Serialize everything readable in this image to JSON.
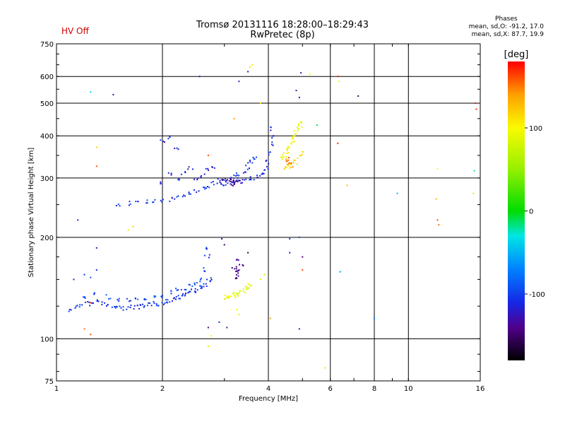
{
  "header": {
    "title": "Tromsø 20131116 18:28:00–18:29:43",
    "subtitle": "RwPretec (8p)",
    "status": "HV Off",
    "status_color": "#d00000"
  },
  "stats": {
    "heading": "Phases",
    "line1": "mean, sd,O: -91.2, 17.0",
    "line2": "mean, sd,X:  87.7, 19.9"
  },
  "colorbar": {
    "label": "[deg]",
    "ticks": [
      {
        "value": 100,
        "label": "100"
      },
      {
        "value": 0,
        "label": "0"
      },
      {
        "value": -100,
        "label": "-100"
      }
    ],
    "range": [
      -180,
      180
    ]
  },
  "chart_data": {
    "type": "scatter",
    "xlabel": "Frequency [MHz]",
    "ylabel": "Stationary phase Virtual Height [km]",
    "xscale": "log",
    "yscale": "log",
    "xlim": [
      1,
      16
    ],
    "ylim": [
      75,
      750
    ],
    "xticks": [
      {
        "v": 1,
        "label": "1"
      },
      {
        "v": 2,
        "label": "2"
      },
      {
        "v": 4,
        "label": "4"
      },
      {
        "v": 6,
        "label": "6"
      },
      {
        "v": 8,
        "label": "8"
      },
      {
        "v": 10,
        "label": "10"
      },
      {
        "v": 16,
        "label": "16"
      }
    ],
    "yticks": [
      {
        "v": 75,
        "label": "75"
      },
      {
        "v": 100,
        "label": "100"
      },
      {
        "v": 200,
        "label": "200"
      },
      {
        "v": 300,
        "label": "300"
      },
      {
        "v": 400,
        "label": "400"
      },
      {
        "v": 500,
        "label": "500"
      },
      {
        "v": 600,
        "label": "600"
      },
      {
        "v": 750,
        "label": "750"
      }
    ],
    "grid_x": [
      2,
      4,
      6,
      8,
      10
    ],
    "grid_y": [
      100,
      200,
      300,
      400,
      500,
      600
    ],
    "grid": true,
    "series": [
      {
        "mode": "E-layer O trace",
        "phase": -105,
        "points": [
          [
            1.1,
            122
          ],
          [
            1.14,
            124
          ],
          [
            1.18,
            126
          ],
          [
            1.22,
            128
          ],
          [
            1.26,
            127
          ],
          [
            1.3,
            129
          ],
          [
            1.35,
            127
          ],
          [
            1.4,
            126
          ],
          [
            1.45,
            125
          ],
          [
            1.5,
            124
          ],
          [
            1.55,
            123
          ],
          [
            1.6,
            123
          ],
          [
            1.65,
            124
          ],
          [
            1.7,
            124
          ],
          [
            1.75,
            125
          ],
          [
            1.8,
            125
          ],
          [
            1.85,
            126
          ],
          [
            1.9,
            127
          ],
          [
            1.95,
            127
          ],
          [
            2.0,
            128
          ],
          [
            2.05,
            129
          ],
          [
            2.1,
            130
          ],
          [
            2.15,
            131
          ],
          [
            2.2,
            132
          ],
          [
            2.25,
            133
          ],
          [
            2.3,
            134
          ],
          [
            2.35,
            136
          ],
          [
            2.4,
            137
          ],
          [
            2.45,
            139
          ],
          [
            2.5,
            140
          ],
          [
            2.55,
            142
          ],
          [
            2.6,
            143
          ],
          [
            2.65,
            145
          ],
          [
            2.7,
            148
          ],
          [
            2.75,
            150
          ]
        ]
      },
      {
        "mode": "E-layer O trace (upper edge)",
        "phase": -95,
        "points": [
          [
            1.2,
            132
          ],
          [
            1.3,
            136
          ],
          [
            1.4,
            133
          ],
          [
            1.5,
            131
          ],
          [
            1.6,
            130
          ],
          [
            1.7,
            131
          ],
          [
            1.8,
            130
          ],
          [
            1.9,
            133
          ],
          [
            2.0,
            134
          ],
          [
            2.1,
            137
          ],
          [
            2.2,
            139
          ],
          [
            2.3,
            141
          ],
          [
            2.4,
            144
          ],
          [
            2.5,
            146
          ],
          [
            2.6,
            150
          ],
          [
            2.65,
            160
          ],
          [
            2.68,
            175
          ],
          [
            2.7,
            185
          ]
        ]
      },
      {
        "mode": "E-layer X trace",
        "phase": 90,
        "points": [
          [
            3.0,
            132
          ],
          [
            3.05,
            134
          ],
          [
            3.1,
            133
          ],
          [
            3.15,
            135
          ],
          [
            3.2,
            134
          ],
          [
            3.25,
            136
          ],
          [
            3.3,
            135
          ],
          [
            3.35,
            137
          ],
          [
            3.4,
            139
          ],
          [
            3.45,
            141
          ],
          [
            3.5,
            143
          ],
          [
            3.55,
            146
          ]
        ]
      },
      {
        "mode": "E-layer O cusp",
        "phase": -140,
        "points": [
          [
            3.2,
            150
          ],
          [
            3.25,
            155
          ],
          [
            3.3,
            160
          ],
          [
            3.35,
            165
          ],
          [
            3.3,
            170
          ],
          [
            3.25,
            158
          ],
          [
            3.2,
            162
          ]
        ]
      },
      {
        "mode": "F-layer O trace",
        "phase": -105,
        "points": [
          [
            1.5,
            250
          ],
          [
            1.6,
            252
          ],
          [
            1.7,
            254
          ],
          [
            1.8,
            255
          ],
          [
            1.9,
            256
          ],
          [
            2.0,
            257
          ],
          [
            2.1,
            259
          ],
          [
            2.2,
            262
          ],
          [
            2.3,
            265
          ],
          [
            2.4,
            270
          ],
          [
            2.5,
            274
          ],
          [
            2.6,
            278
          ],
          [
            2.7,
            283
          ],
          [
            2.8,
            290
          ],
          [
            2.9,
            295
          ],
          [
            3.0,
            298
          ],
          [
            3.1,
            300
          ],
          [
            3.2,
            303
          ],
          [
            3.3,
            308
          ],
          [
            3.4,
            315
          ],
          [
            3.5,
            322
          ],
          [
            3.55,
            330
          ],
          [
            3.6,
            340
          ],
          [
            3.65,
            346
          ]
        ]
      },
      {
        "mode": "F-layer O upper branch",
        "phase": -110,
        "points": [
          [
            2.9,
            285
          ],
          [
            3.0,
            288
          ],
          [
            3.1,
            290
          ],
          [
            3.2,
            292
          ],
          [
            3.3,
            292
          ],
          [
            3.4,
            294
          ],
          [
            3.5,
            297
          ],
          [
            3.6,
            300
          ],
          [
            3.7,
            303
          ],
          [
            3.8,
            307
          ],
          [
            3.9,
            312
          ],
          [
            3.95,
            320
          ],
          [
            4.0,
            335
          ],
          [
            4.05,
            355
          ],
          [
            4.08,
            380
          ],
          [
            4.1,
            400
          ],
          [
            4.12,
            420
          ]
        ]
      },
      {
        "mode": "F-layer O scatter high",
        "phase": -115,
        "points": [
          [
            2.0,
            385
          ],
          [
            2.1,
            395
          ],
          [
            2.2,
            370
          ],
          [
            2.1,
            310
          ],
          [
            2.3,
            310
          ],
          [
            2.4,
            320
          ],
          [
            2.2,
            298
          ],
          [
            2.0,
            290
          ],
          [
            2.5,
            300
          ],
          [
            2.6,
            305
          ],
          [
            2.7,
            315
          ],
          [
            2.8,
            322
          ]
        ]
      },
      {
        "mode": "F-layer O cusp",
        "phase": -135,
        "points": [
          [
            3.0,
            292
          ],
          [
            3.05,
            296
          ],
          [
            3.1,
            294
          ],
          [
            3.15,
            290
          ],
          [
            3.2,
            288
          ],
          [
            3.25,
            292
          ],
          [
            3.3,
            296
          ]
        ]
      },
      {
        "mode": "F-layer X trace",
        "phase": 95,
        "points": [
          [
            4.4,
            345
          ],
          [
            4.45,
            350
          ],
          [
            4.5,
            355
          ],
          [
            4.55,
            362
          ],
          [
            4.6,
            370
          ],
          [
            4.65,
            380
          ],
          [
            4.7,
            390
          ],
          [
            4.75,
            400
          ],
          [
            4.8,
            410
          ],
          [
            4.85,
            420
          ],
          [
            4.9,
            430
          ],
          [
            4.95,
            440
          ]
        ]
      },
      {
        "mode": "F-layer X lower",
        "phase": 110,
        "points": [
          [
            4.5,
            320
          ],
          [
            4.6,
            325
          ],
          [
            4.7,
            330
          ],
          [
            4.8,
            335
          ],
          [
            4.9,
            345
          ],
          [
            4.95,
            355
          ]
        ]
      },
      {
        "mode": "F-layer X orange",
        "phase": 150,
        "points": [
          [
            4.5,
            340
          ],
          [
            4.55,
            335
          ],
          [
            4.6,
            330
          ],
          [
            4.65,
            328
          ]
        ]
      },
      {
        "mode": "Scattered echoes",
        "phase": 0,
        "points": [
          {
            "x": 1.25,
            "y": 540,
            "p": -40
          },
          {
            "x": 1.45,
            "y": 530,
            "p": -140
          },
          {
            "x": 2.55,
            "y": 600,
            "p": -130
          },
          {
            "x": 3.3,
            "y": 580,
            "p": -120
          },
          {
            "x": 3.5,
            "y": 620,
            "p": -130
          },
          {
            "x": 3.55,
            "y": 640,
            "p": 80
          },
          {
            "x": 3.6,
            "y": 650,
            "p": 110
          },
          {
            "x": 4.95,
            "y": 615,
            "p": -120
          },
          {
            "x": 5.25,
            "y": 610,
            "p": 95
          },
          {
            "x": 6.3,
            "y": 600,
            "p": 175
          },
          {
            "x": 6.35,
            "y": 580,
            "p": 100
          },
          {
            "x": 7.2,
            "y": 525,
            "p": -150
          },
          {
            "x": 4.8,
            "y": 545,
            "p": -130
          },
          {
            "x": 4.9,
            "y": 520,
            "p": -140
          },
          {
            "x": 3.8,
            "y": 500,
            "p": 110
          },
          {
            "x": 3.2,
            "y": 450,
            "p": 140
          },
          {
            "x": 6.3,
            "y": 380,
            "p": 170
          },
          {
            "x": 5.5,
            "y": 430,
            "p": -10
          },
          {
            "x": 1.3,
            "y": 370,
            "p": 120
          },
          {
            "x": 1.3,
            "y": 325,
            "p": 160
          },
          {
            "x": 2.7,
            "y": 350,
            "p": 160
          },
          {
            "x": 6.7,
            "y": 285,
            "p": 130
          },
          {
            "x": 9.3,
            "y": 270,
            "p": -50
          },
          {
            "x": 12.1,
            "y": 320,
            "p": 100
          },
          {
            "x": 12.0,
            "y": 260,
            "p": 130
          },
          {
            "x": 12.1,
            "y": 225,
            "p": 160
          },
          {
            "x": 12.2,
            "y": 218,
            "p": 150
          },
          {
            "x": 15.5,
            "y": 500,
            "p": 175
          },
          {
            "x": 15.6,
            "y": 480,
            "p": 170
          },
          {
            "x": 15.4,
            "y": 315,
            "p": -20
          },
          {
            "x": 15.3,
            "y": 270,
            "p": 110
          },
          {
            "x": 1.15,
            "y": 225,
            "p": -120
          },
          {
            "x": 1.3,
            "y": 186,
            "p": -130
          },
          {
            "x": 1.6,
            "y": 210,
            "p": 110
          },
          {
            "x": 1.65,
            "y": 215,
            "p": 120
          },
          {
            "x": 2.95,
            "y": 198,
            "p": -150
          },
          {
            "x": 3.0,
            "y": 190,
            "p": -150
          },
          {
            "x": 3.5,
            "y": 180,
            "p": -160
          },
          {
            "x": 4.6,
            "y": 198,
            "p": -110
          },
          {
            "x": 4.9,
            "y": 200,
            "p": -100
          },
          {
            "x": 4.6,
            "y": 180,
            "p": -120
          },
          {
            "x": 5.0,
            "y": 175,
            "p": -140
          },
          {
            "x": 5.0,
            "y": 160,
            "p": 160
          },
          {
            "x": 6.4,
            "y": 158,
            "p": -60
          },
          {
            "x": 1.12,
            "y": 150,
            "p": -120
          },
          {
            "x": 1.2,
            "y": 155,
            "p": -110
          },
          {
            "x": 1.25,
            "y": 152,
            "p": -90
          },
          {
            "x": 1.3,
            "y": 160,
            "p": -110
          },
          {
            "x": 1.25,
            "y": 128,
            "p": 170
          },
          {
            "x": 1.2,
            "y": 107,
            "p": 150
          },
          {
            "x": 1.25,
            "y": 103,
            "p": 160
          },
          {
            "x": 2.7,
            "y": 108,
            "p": -150
          },
          {
            "x": 2.75,
            "y": 102,
            "p": 100
          },
          {
            "x": 2.9,
            "y": 112,
            "p": -120
          },
          {
            "x": 2.7,
            "y": 95,
            "p": 80
          },
          {
            "x": 4.05,
            "y": 115,
            "p": 140
          },
          {
            "x": 4.9,
            "y": 107,
            "p": -120
          },
          {
            "x": 5.8,
            "y": 82,
            "p": 110
          },
          {
            "x": 8.0,
            "y": 115,
            "p": -70
          },
          {
            "x": 3.05,
            "y": 108,
            "p": -130
          },
          {
            "x": 3.3,
            "y": 118,
            "p": 110
          },
          {
            "x": 3.25,
            "y": 122,
            "p": 100
          },
          {
            "x": 3.8,
            "y": 150,
            "p": 80
          },
          {
            "x": 3.9,
            "y": 155,
            "p": 70
          }
        ]
      }
    ]
  }
}
